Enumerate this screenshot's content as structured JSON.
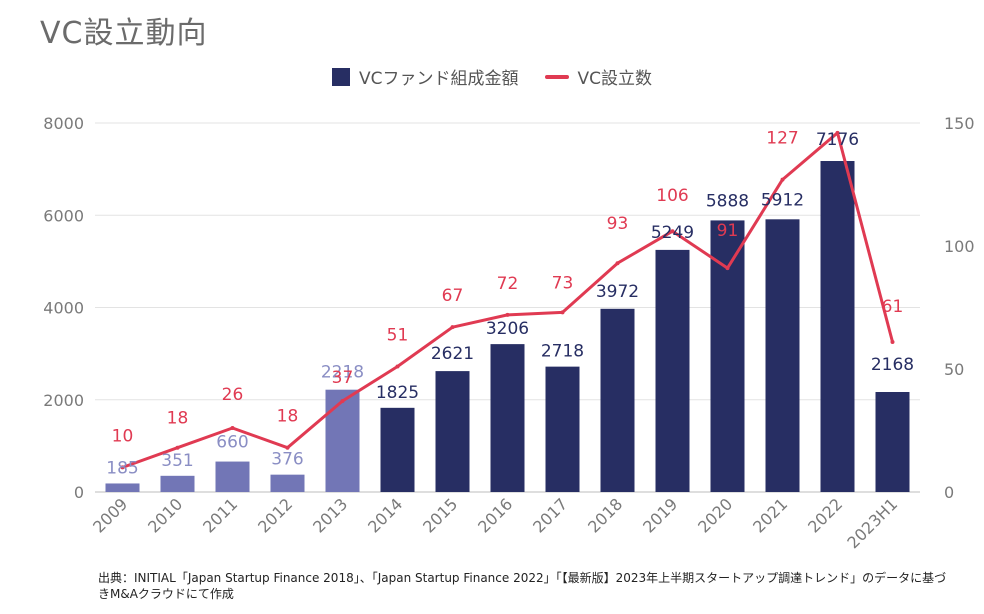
{
  "chart_data": {
    "type": "bar",
    "title": "VC設立動向",
    "categories": [
      "2009",
      "2010",
      "2011",
      "2012",
      "2013",
      "2014",
      "2015",
      "2016",
      "2017",
      "2018",
      "2019",
      "2020",
      "2021",
      "2022",
      "2023H1"
    ],
    "series": [
      {
        "name": "VCファンド組成金額",
        "type": "bar",
        "axis": "left",
        "values": [
          185,
          351,
          660,
          376,
          2218,
          1825,
          2621,
          3206,
          2718,
          3972,
          5249,
          5888,
          5912,
          7176,
          2168
        ],
        "labels": [
          "185",
          "351",
          "660",
          "376",
          "2218",
          "1825",
          "2621",
          "3206",
          "2718",
          "3972",
          "5249",
          "5888",
          "5912",
          "7176",
          "2168"
        ]
      },
      {
        "name": "VC設立数",
        "type": "line",
        "axis": "right",
        "values": [
          10,
          18,
          26,
          18,
          37,
          51,
          67,
          72,
          73,
          93,
          106,
          91,
          127,
          146,
          61
        ],
        "labels": [
          "10",
          "18",
          "26",
          "18",
          "37",
          "51",
          "67",
          "72",
          "73",
          "93",
          "106",
          "91",
          "127",
          "",
          "61"
        ]
      }
    ],
    "ylim_left": [
      0,
      8000
    ],
    "yticks_left": [
      0,
      2000,
      4000,
      6000,
      8000
    ],
    "ylim_right": [
      0,
      150
    ],
    "yticks_right": [
      0,
      50,
      100,
      150
    ],
    "legend_position": "top-center",
    "grid": true
  },
  "colors": {
    "bar_dark": "#272e63",
    "bar_light": "#7276b6",
    "label_light": "#8a8ec4",
    "line": "#e03a52",
    "grid": "#e3e3e3",
    "tick": "#7a7a7a"
  },
  "source_note": "出典：INITIAL「Japan Startup Finance 2018」、「Japan Startup Finance 2022」「【最新版】2023年上半期スタートアップ調達トレンド」のデータに基づきM&Aクラウドにて作成"
}
